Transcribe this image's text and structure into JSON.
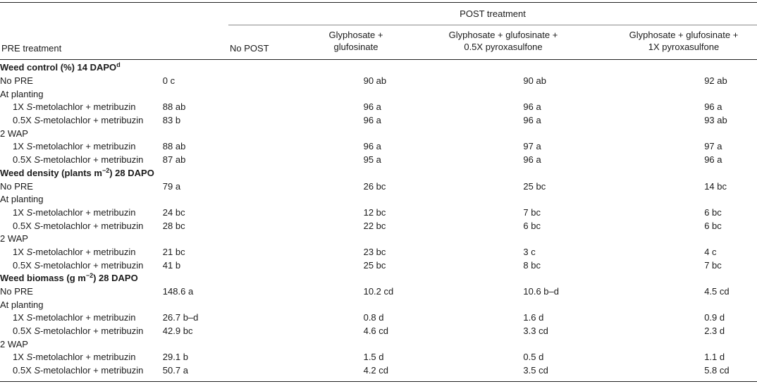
{
  "header": {
    "post_group": "POST treatment",
    "pre_label": "PRE treatment",
    "col1": "No POST",
    "col2_line1": "Glyphosate +",
    "col2_line2": "glufosinate",
    "col3_line1": "Glyphosate + glufosinate +",
    "col3_line2": "0.5X pyroxasulfone",
    "col4_line1": "Glyphosate + glufosinate +",
    "col4_line2": "1X pyroxasulfone"
  },
  "sections": [
    {
      "title_main": "Weed control (%) 14 DAPO",
      "title_sup": "d",
      "rows": [
        {
          "type": "row",
          "label": "No PRE",
          "v": [
            "0 c",
            "90 ab",
            "90 ab",
            "92 ab"
          ]
        },
        {
          "type": "group",
          "label": "At planting"
        },
        {
          "type": "row",
          "indent": true,
          "prefix": "1X ",
          "ital": "S",
          "suffix": "-metolachlor + metribuzin",
          "v": [
            "88 ab",
            "96 a",
            "96 a",
            "96 a"
          ]
        },
        {
          "type": "row",
          "indent": true,
          "prefix": "0.5X ",
          "ital": "S",
          "suffix": "-metolachlor + metribuzin",
          "v": [
            "83 b",
            "96 a",
            "96 a",
            "93 ab"
          ]
        },
        {
          "type": "group",
          "label": "2 WAP"
        },
        {
          "type": "row",
          "indent": true,
          "prefix": "1X ",
          "ital": "S",
          "suffix": "-metolachlor + metribuzin",
          "v": [
            "88 ab",
            "96 a",
            "97 a",
            "97 a"
          ]
        },
        {
          "type": "row",
          "indent": true,
          "prefix": "0.5X ",
          "ital": "S",
          "suffix": "-metolachlor + metribuzin",
          "v": [
            "87 ab",
            "95 a",
            "96 a",
            "96 a"
          ]
        }
      ]
    },
    {
      "title_main": "Weed density (plants m",
      "title_sup": "−2",
      "title_tail": ") 28 DAPO",
      "rows": [
        {
          "type": "row",
          "label": "No PRE",
          "v": [
            "79 a",
            "26 bc",
            "25 bc",
            "14 bc"
          ]
        },
        {
          "type": "group",
          "label": "At planting"
        },
        {
          "type": "row",
          "indent": true,
          "prefix": "1X ",
          "ital": "S",
          "suffix": "-metolachlor + metribuzin",
          "v": [
            "24 bc",
            "12 bc",
            "7 bc",
            "6 bc"
          ]
        },
        {
          "type": "row",
          "indent": true,
          "prefix": "0.5X ",
          "ital": "S",
          "suffix": "-metolachlor + metribuzin",
          "v": [
            "28 bc",
            "22 bc",
            "6 bc",
            "6 bc"
          ]
        },
        {
          "type": "group",
          "label": "2 WAP"
        },
        {
          "type": "row",
          "indent": true,
          "prefix": "1X ",
          "ital": "S",
          "suffix": "-metolachlor + metribuzin",
          "v": [
            "21 bc",
            "23 bc",
            "3 c",
            "4 c"
          ]
        },
        {
          "type": "row",
          "indent": true,
          "prefix": "0.5X ",
          "ital": "S",
          "suffix": "-metolachlor + metribuzin",
          "v": [
            "41 b",
            "25 bc",
            "8 bc",
            "7 bc"
          ]
        }
      ]
    },
    {
      "title_main": "Weed biomass (g m",
      "title_sup": "−2",
      "title_tail": ") 28 DAPO",
      "rows": [
        {
          "type": "row",
          "label": "No PRE",
          "v": [
            "148.6 a",
            "10.2 cd",
            "10.6 b–d",
            "4.5 cd"
          ]
        },
        {
          "type": "group",
          "label": "At planting"
        },
        {
          "type": "row",
          "indent": true,
          "prefix": "1X ",
          "ital": "S",
          "suffix": "-metolachlor + metribuzin",
          "v": [
            "26.7 b–d",
            "0.8 d",
            "1.6 d",
            "0.9 d"
          ]
        },
        {
          "type": "row",
          "indent": true,
          "prefix": "0.5X ",
          "ital": "S",
          "suffix": "-metolachlor + metribuzin",
          "v": [
            "42.9 bc",
            "4.6 cd",
            "3.3 cd",
            "2.3 d"
          ]
        },
        {
          "type": "group",
          "label": "2 WAP"
        },
        {
          "type": "row",
          "indent": true,
          "prefix": "1X ",
          "ital": "S",
          "suffix": "-metolachlor + metribuzin",
          "v": [
            "29.1 b",
            "1.5 d",
            "0.5 d",
            "1.1 d"
          ]
        },
        {
          "type": "row",
          "indent": true,
          "prefix": "0.5X ",
          "ital": "S",
          "suffix": "-metolachlor + metribuzin",
          "v": [
            "50.7 a",
            "4.2 cd",
            "3.5 cd",
            "5.8 cd"
          ]
        }
      ]
    }
  ]
}
